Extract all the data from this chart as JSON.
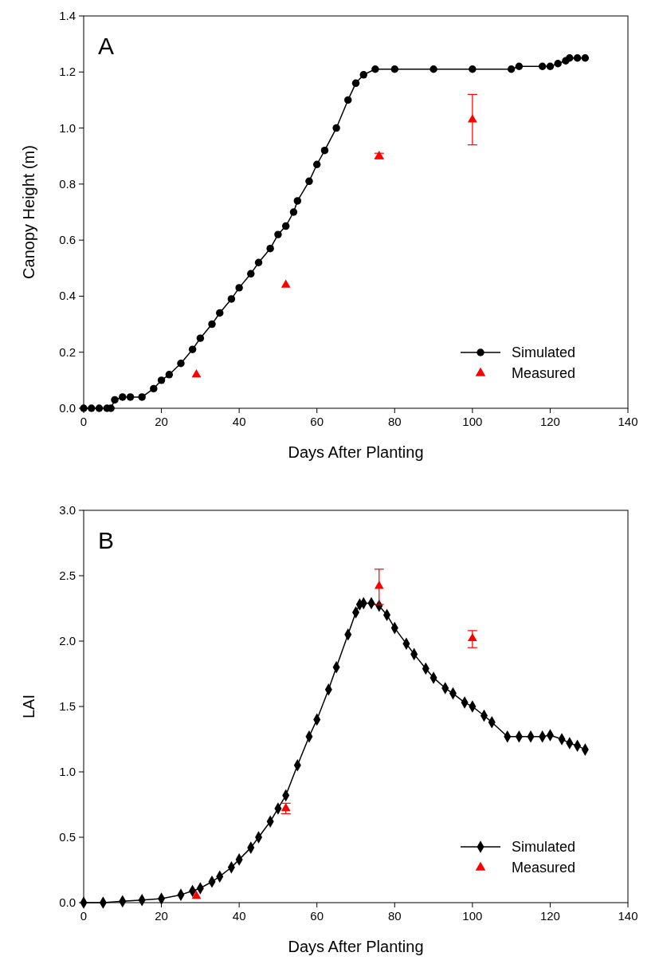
{
  "chart_data": [
    {
      "type": "line",
      "xlabel": "Days After Planting",
      "ylabel": "Canopy Height (m)",
      "annotations": [
        "A"
      ],
      "xlim": [
        0,
        140
      ],
      "xticks": [
        0,
        20,
        40,
        60,
        80,
        100,
        120,
        140
      ],
      "ylim": [
        0,
        1.4
      ],
      "yticks": [
        {
          "value": 0,
          "label": "0.0"
        },
        0.2,
        0.4,
        0.6,
        0.8,
        {
          "value": 1,
          "label": "1.0"
        },
        1.2,
        1.4
      ],
      "grid": false,
      "legend": "bottom right",
      "series": [
        {
          "name": "Simulated",
          "color": "#000000",
          "marker": "circle",
          "x": [
            0,
            2,
            4,
            6,
            7,
            8,
            10,
            12,
            15,
            18,
            20,
            22,
            25,
            28,
            30,
            33,
            35,
            38,
            40,
            43,
            45,
            48,
            50,
            52,
            54,
            55,
            58,
            60,
            62,
            65,
            68,
            70,
            72,
            75,
            80,
            90,
            100,
            110,
            112,
            118,
            120,
            122,
            124,
            125,
            127,
            129
          ],
          "values": [
            0,
            0,
            0,
            0,
            0,
            0.03,
            0.04,
            0.04,
            0.04,
            0.07,
            0.1,
            0.12,
            0.16,
            0.21,
            0.25,
            0.3,
            0.34,
            0.39,
            0.43,
            0.48,
            0.52,
            0.57,
            0.62,
            0.65,
            0.7,
            0.74,
            0.81,
            0.87,
            0.92,
            1.0,
            1.1,
            1.16,
            1.19,
            1.21,
            1.21,
            1.21,
            1.21,
            1.21,
            1.22,
            1.22,
            1.22,
            1.23,
            1.24,
            1.25,
            1.25,
            1.25
          ]
        },
        {
          "name": "Measured",
          "type": "scatter",
          "color": "#ff0000",
          "marker": "triangle",
          "x": [
            29,
            52,
            76,
            100
          ],
          "values": [
            0.12,
            0.44,
            0.9,
            1.03
          ],
          "errors": [
            null,
            null,
            0.01,
            [
              0.94,
              1.12
            ]
          ]
        }
      ]
    },
    {
      "type": "line",
      "xlabel": "Days After Planting",
      "ylabel": "LAI",
      "annotations": [
        "B"
      ],
      "xlim": [
        0,
        140
      ],
      "xticks": [
        0,
        20,
        40,
        60,
        80,
        100,
        120,
        140
      ],
      "ylim": [
        0,
        3.0
      ],
      "yticks": [
        {
          "value": 0,
          "label": "0.0"
        },
        0.5,
        {
          "value": 1,
          "label": "1.0"
        },
        1.5,
        {
          "value": 2,
          "label": "2.0"
        },
        2.5,
        {
          "value": 3,
          "label": "3.0"
        }
      ],
      "grid": false,
      "legend": "bottom right",
      "series": [
        {
          "name": "Simulated",
          "color": "#000000",
          "marker": "diamond",
          "x": [
            0,
            5,
            10,
            15,
            20,
            25,
            28,
            30,
            33,
            35,
            38,
            40,
            43,
            45,
            48,
            50,
            52,
            55,
            58,
            60,
            63,
            65,
            68,
            70,
            71,
            72,
            74,
            76,
            78,
            80,
            83,
            85,
            88,
            90,
            93,
            95,
            98,
            100,
            103,
            105,
            109,
            112,
            115,
            118,
            120,
            123,
            125,
            127,
            129
          ],
          "values": [
            0,
            0,
            0.01,
            0.02,
            0.03,
            0.06,
            0.09,
            0.11,
            0.16,
            0.2,
            0.27,
            0.33,
            0.42,
            0.5,
            0.62,
            0.72,
            0.82,
            1.05,
            1.27,
            1.4,
            1.63,
            1.8,
            2.05,
            2.22,
            2.28,
            2.29,
            2.29,
            2.27,
            2.2,
            2.1,
            1.98,
            1.9,
            1.79,
            1.72,
            1.64,
            1.6,
            1.53,
            1.5,
            1.43,
            1.38,
            1.27,
            1.27,
            1.27,
            1.27,
            1.28,
            1.25,
            1.22,
            1.2,
            1.17
          ]
        },
        {
          "name": "Measured",
          "type": "scatter",
          "color": "#ff0000",
          "marker": "triangle",
          "x": [
            29,
            52,
            76,
            100
          ],
          "values": [
            0.05,
            0.72,
            2.42,
            2.02
          ],
          "errors": [
            null,
            0.04,
            [
              2.28,
              2.55
            ],
            [
              1.95,
              2.08
            ]
          ]
        }
      ]
    }
  ]
}
